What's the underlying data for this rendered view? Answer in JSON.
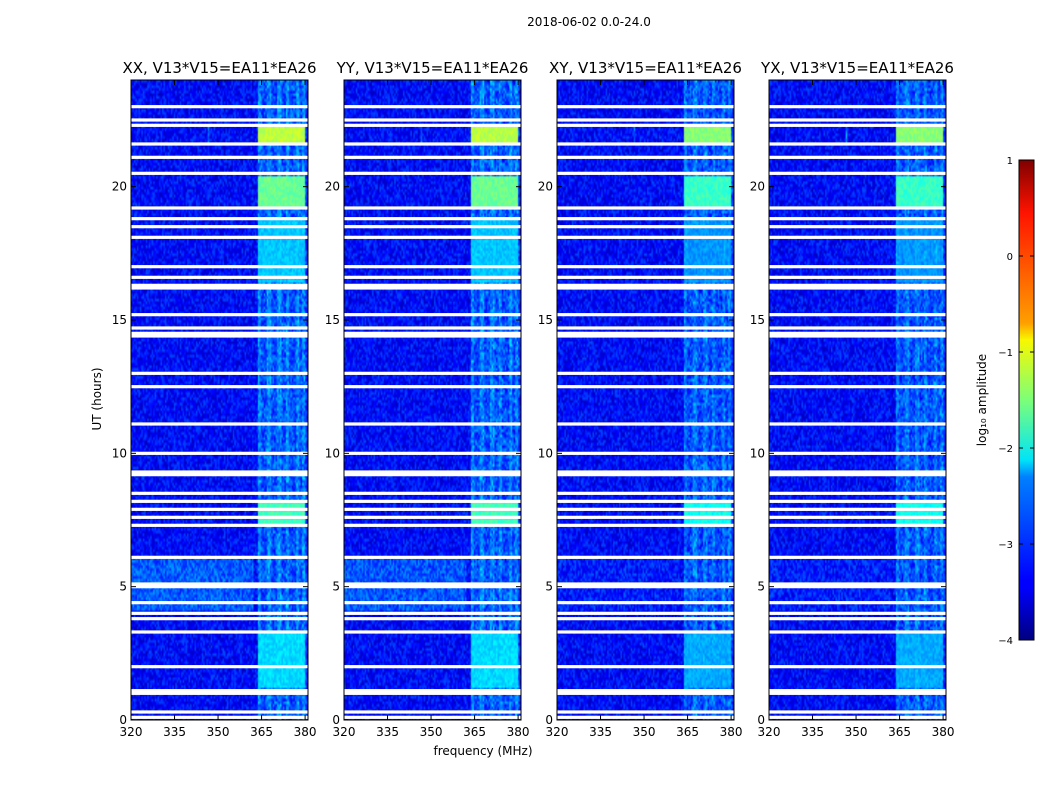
{
  "chart_data": {
    "type": "heatmap",
    "title": "2018-06-02 0.0-24.0",
    "xlabel": "frequency (MHz)",
    "ylabel": "UT (hours)",
    "xlim": [
      320,
      381
    ],
    "ylim": [
      0,
      24
    ],
    "x_ticks": [
      320,
      335,
      350,
      365,
      380
    ],
    "y_ticks": [
      0,
      5,
      10,
      15,
      20
    ],
    "colorbar": {
      "label": "log₁₀ amplitude",
      "range": [
        -4,
        1
      ],
      "ticks": [
        1,
        0,
        -1,
        -2,
        -3,
        -4
      ],
      "tick_labels": [
        "1",
        "0",
        "−1",
        "−2",
        "−3",
        "−4"
      ],
      "colormap": "jet"
    },
    "panels": [
      {
        "title": "XX, V13*V15=EA11*EA26",
        "rfi_strength": 1.0,
        "band_strength": 0.85
      },
      {
        "title": "YY, V13*V15=EA11*EA26",
        "rfi_strength": 1.0,
        "band_strength": 0.8
      },
      {
        "title": "XY, V13*V15=EA11*EA26",
        "rfi_strength": 0.9,
        "band_strength": 0.2
      },
      {
        "title": "YX, V13*V15=EA11*EA26",
        "rfi_strength": 0.9,
        "band_strength": 0.2
      }
    ],
    "flagged_hours": [
      0.1,
      0.3,
      1.0,
      1.1,
      2.0,
      3.3,
      3.8,
      4.0,
      4.4,
      5.0,
      5.1,
      6.1,
      7.3,
      7.6,
      7.9,
      8.2,
      8.5,
      9.2,
      9.3,
      10.0,
      11.1,
      12.5,
      13.0,
      14.4,
      14.5,
      14.7,
      15.2,
      16.2,
      16.3,
      16.6,
      17.0,
      18.1,
      18.5,
      18.8,
      19.2,
      20.5,
      21.1,
      21.6,
      22.3,
      22.5,
      23.0
    ],
    "rfi_channels_mhz": [
      364,
      367.5,
      371,
      374,
      377.5,
      379.5
    ],
    "rfi_bursts": [
      {
        "t0": 21.6,
        "t1": 22.3,
        "level": -1.2
      },
      {
        "t0": 19.2,
        "t1": 20.4,
        "level": -1.6
      },
      {
        "t0": 7.3,
        "t1": 8.2,
        "level": -1.8
      },
      {
        "t0": 1.2,
        "t1": 3.3,
        "level": -2.3
      },
      {
        "t0": 16.4,
        "t1": 18.8,
        "level": -2.4
      }
    ]
  }
}
